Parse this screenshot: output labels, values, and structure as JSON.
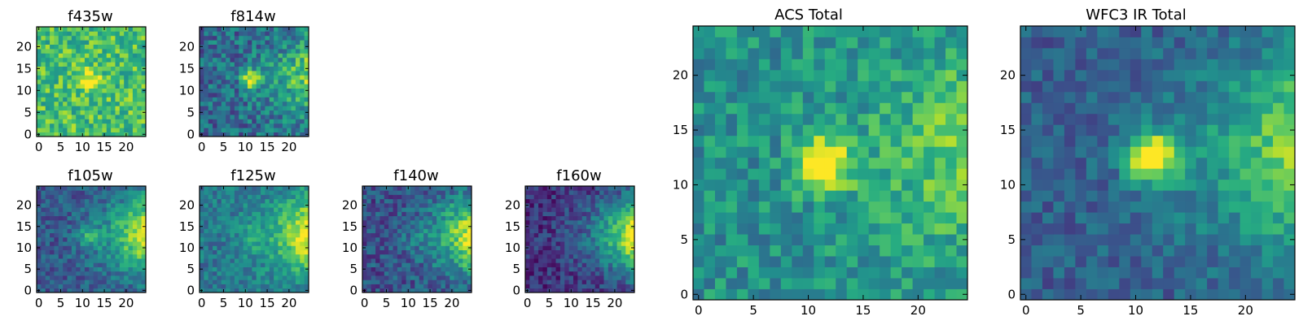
{
  "colormap": [
    "#440154",
    "#472c7a",
    "#3b518b",
    "#2c718e",
    "#21908d",
    "#27ad81",
    "#5cc863",
    "#aadc32",
    "#fde725"
  ],
  "chart_data": [
    {
      "type": "heatmap",
      "title": "f435w",
      "grid_size": 25,
      "xlim": [
        0,
        24
      ],
      "ylim": [
        0,
        24
      ],
      "xticks": [
        0,
        5,
        10,
        15,
        20
      ],
      "yticks": [
        0,
        5,
        10,
        15,
        20
      ],
      "pattern": {
        "base": 0.7,
        "noise": 0.2,
        "source": {
          "x": 11.5,
          "y": 12.5,
          "sigma": 1.8,
          "amp": 0.35
        },
        "edge_gradient": 0.0,
        "seed": 11
      }
    },
    {
      "type": "heatmap",
      "title": "f814w",
      "grid_size": 25,
      "xlim": [
        0,
        24
      ],
      "ylim": [
        0,
        24
      ],
      "xticks": [
        0,
        5,
        10,
        15,
        20
      ],
      "yticks": [
        0,
        5,
        10,
        15,
        20
      ],
      "pattern": {
        "base": 0.35,
        "noise": 0.2,
        "source": {
          "x": 11.5,
          "y": 12.5,
          "sigma": 1.5,
          "amp": 0.6
        },
        "edge_gradient": 0.45,
        "seed": 23
      }
    },
    {
      "type": "heatmap",
      "title": "f105w",
      "grid_size": 25,
      "xlim": [
        0,
        24
      ],
      "ylim": [
        0,
        24
      ],
      "xticks": [
        0,
        5,
        10,
        15,
        20
      ],
      "yticks": [
        0,
        5,
        10,
        15,
        20
      ],
      "pattern": {
        "base": 0.28,
        "noise": 0.14,
        "source": {
          "x": 11.5,
          "y": 12.5,
          "sigma": 1.8,
          "amp": 0.25
        },
        "edge_gradient": 0.7,
        "seed": 37
      }
    },
    {
      "type": "heatmap",
      "title": "f125w",
      "grid_size": 25,
      "xlim": [
        0,
        24
      ],
      "ylim": [
        0,
        24
      ],
      "xticks": [
        0,
        5,
        10,
        15,
        20
      ],
      "yticks": [
        0,
        5,
        10,
        15,
        20
      ],
      "pattern": {
        "base": 0.4,
        "noise": 0.14,
        "source": {
          "x": 11.5,
          "y": 12.5,
          "sigma": 1.8,
          "amp": 0.15
        },
        "edge_gradient": 0.6,
        "seed": 41
      }
    },
    {
      "type": "heatmap",
      "title": "f140w",
      "grid_size": 25,
      "xlim": [
        0,
        24
      ],
      "ylim": [
        0,
        24
      ],
      "xticks": [
        0,
        5,
        10,
        15,
        20
      ],
      "yticks": [
        0,
        5,
        10,
        15,
        20
      ],
      "pattern": {
        "base": 0.25,
        "noise": 0.16,
        "source": {
          "x": 11.5,
          "y": 12.5,
          "sigma": 1.8,
          "amp": 0.05
        },
        "edge_gradient": 0.72,
        "seed": 53
      }
    },
    {
      "type": "heatmap",
      "title": "f160w",
      "grid_size": 25,
      "xlim": [
        0,
        24
      ],
      "ylim": [
        0,
        24
      ],
      "xticks": [
        0,
        5,
        10,
        15,
        20
      ],
      "yticks": [
        0,
        5,
        10,
        15,
        20
      ],
      "pattern": {
        "base": 0.15,
        "noise": 0.14,
        "source": {
          "x": 11.5,
          "y": 12.5,
          "sigma": 1.8,
          "amp": 0.0
        },
        "edge_gradient": 0.85,
        "seed": 67
      }
    },
    {
      "type": "heatmap",
      "title": "ACS Total",
      "grid_size": 25,
      "xlim": [
        0,
        24
      ],
      "ylim": [
        0,
        24
      ],
      "xticks": [
        0,
        5,
        10,
        15,
        20
      ],
      "yticks": [
        0,
        5,
        10,
        15,
        20
      ],
      "pattern": {
        "base": 0.5,
        "noise": 0.16,
        "source": {
          "x": 11.5,
          "y": 12.0,
          "sigma": 1.7,
          "amp": 0.6
        },
        "edge_gradient": 0.3,
        "seed": 79
      }
    },
    {
      "type": "heatmap",
      "title": "WFC3 IR Total",
      "grid_size": 25,
      "xlim": [
        0,
        24
      ],
      "ylim": [
        0,
        24
      ],
      "xticks": [
        0,
        5,
        10,
        15,
        20
      ],
      "yticks": [
        0,
        5,
        10,
        15,
        20
      ],
      "pattern": {
        "base": 0.3,
        "noise": 0.12,
        "source": {
          "x": 11.5,
          "y": 12.5,
          "sigma": 1.6,
          "amp": 0.75
        },
        "edge_gradient": 0.55,
        "seed": 97
      }
    }
  ]
}
